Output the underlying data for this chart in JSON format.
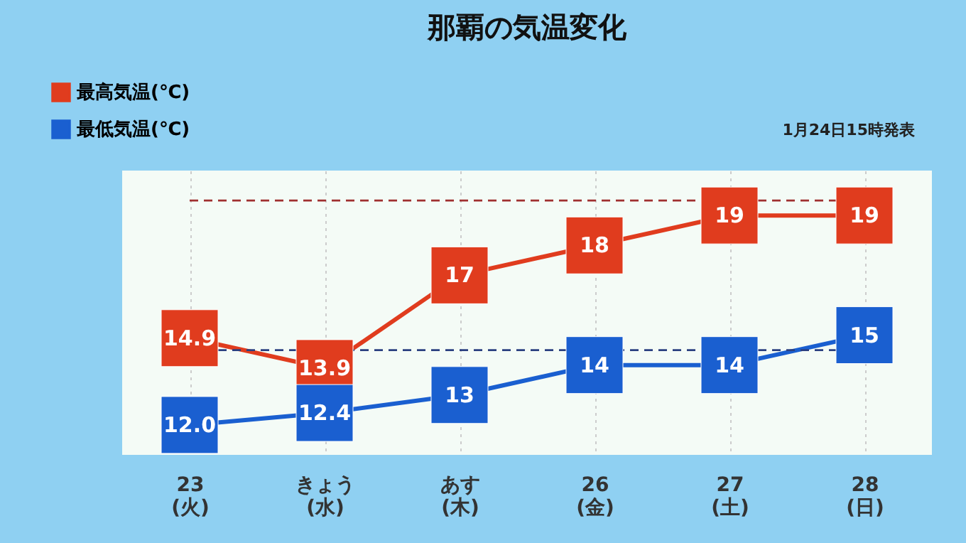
{
  "chart_data": {
    "type": "line",
    "title": "那覇の気温変化",
    "annotations": [
      "1月24日15時発表"
    ],
    "categories": [
      "23\n(火)",
      "きょう\n(水)",
      "あす\n(木)",
      "26\n(金)",
      "27\n(土)",
      "28\n(日)"
    ],
    "series": [
      {
        "name": "最高気温(℃)",
        "color": "#e03c1e",
        "values": [
          14.9,
          13.9,
          17,
          18,
          19,
          19
        ],
        "value_labels": [
          "14.9",
          "13.9",
          "17",
          "18",
          "19",
          "19"
        ]
      },
      {
        "name": "最低気温(℃)",
        "color": "#1a5fd0",
        "values": [
          12.0,
          12.4,
          13,
          14,
          14,
          15
        ],
        "value_labels": [
          "12.0",
          "12.4",
          "13",
          "14",
          "14",
          "15"
        ]
      }
    ],
    "ref_lines": [
      {
        "axis": "y",
        "value": 19.5,
        "color": "#a03030",
        "line_style": "dashed"
      },
      {
        "axis": "y",
        "value": 14.5,
        "color": "#2a3f80",
        "line_style": "dashed"
      }
    ],
    "ylim": [
      11,
      20.5
    ],
    "tick_labels": "x",
    "grid": "x",
    "legend": "top left",
    "marker": "square"
  }
}
